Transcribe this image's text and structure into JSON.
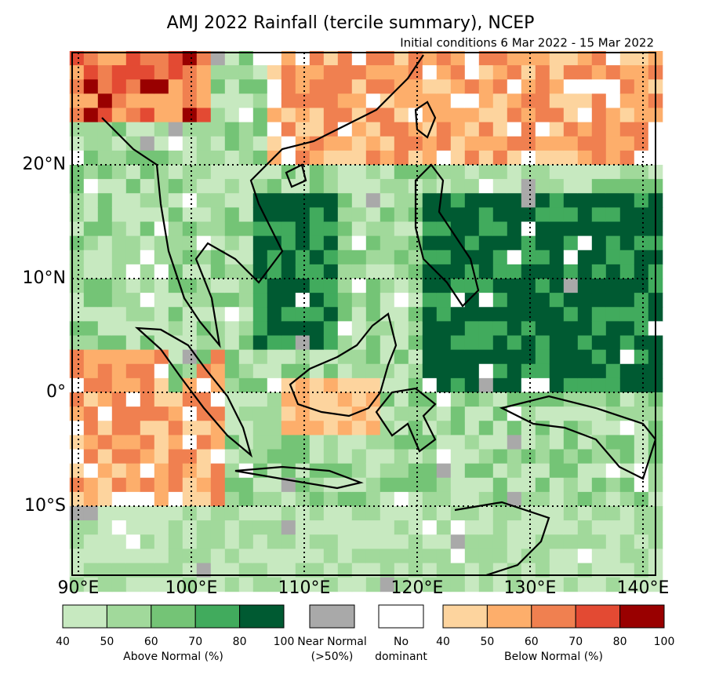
{
  "title": "AMJ 2022 Rainfall (tercile summary), NCEP",
  "subtitle": "Initial conditions 6 Mar 2022 - 15 Mar 2022",
  "map": {
    "lat_labels": [
      "20°N",
      "10°N",
      "0°",
      "10°S"
    ],
    "lon_labels": [
      "90°E",
      "100°E",
      "110°E",
      "120°E",
      "130°E",
      "140°E"
    ]
  },
  "legend": {
    "above": {
      "label": "Above Normal (%)",
      "ticks": [
        40,
        50,
        60,
        70,
        80,
        100
      ],
      "colors": [
        "#c7e9c0",
        "#a1d99b",
        "#74c476",
        "#41ab5d",
        "#005a32"
      ]
    },
    "near_normal": {
      "lines": [
        "Near Normal",
        "(>50%)"
      ],
      "color": "#a9a9a9"
    },
    "no_dominant": {
      "lines": [
        "No",
        "dominant"
      ],
      "color": "#ffffff"
    },
    "below": {
      "label": "Below Normal (%)",
      "ticks": [
        40,
        50,
        60,
        70,
        80,
        100
      ],
      "colors": [
        "#fdd49e",
        "#fdae6b",
        "#f08050",
        "#e34a33",
        "#990000"
      ]
    }
  }
}
